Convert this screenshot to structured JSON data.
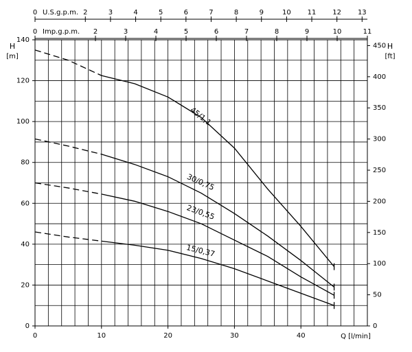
{
  "chart_data": {
    "type": "line",
    "ylabel": "H",
    "yunit": "[m]",
    "y2label": "H",
    "y2unit": "[ft]",
    "xlabel": "Q [l/min]",
    "xlim": [
      0,
      50
    ],
    "xticks": [
      0,
      10,
      20,
      30,
      40
    ],
    "ylim": [
      0,
      140
    ],
    "yticks": [
      0,
      20,
      40,
      60,
      80,
      100,
      120,
      140
    ],
    "y2lim": [
      0,
      459.3
    ],
    "y2ticks": [
      0,
      50,
      100,
      150,
      200,
      250,
      300,
      350,
      400,
      450
    ],
    "x2label": "U.S.g.p.m.",
    "x2lim": [
      0,
      13.21
    ],
    "x2ticks": [
      0,
      2,
      3,
      4,
      5,
      6,
      7,
      8,
      9,
      10,
      11,
      12,
      13
    ],
    "x3label": "Imp.g.p.m.",
    "x3lim": [
      0,
      11
    ],
    "x3ticks": [
      0,
      2,
      3,
      4,
      5,
      6,
      7,
      8,
      9,
      10,
      11
    ],
    "xgrid": [
      0,
      2,
      4,
      6,
      8,
      10,
      12,
      14,
      16,
      18,
      20,
      22,
      24,
      26,
      28,
      30,
      32,
      34,
      36,
      38,
      40,
      42,
      44,
      46,
      48,
      50
    ],
    "ygrid": [
      0,
      10,
      20,
      30,
      40,
      50,
      60,
      70,
      80,
      90,
      100,
      110,
      120,
      130,
      140
    ],
    "dashed_below_x": 10,
    "x": [
      0,
      5,
      10,
      15,
      20,
      25,
      30,
      35,
      40,
      45
    ],
    "series": [
      {
        "name": "45/1,1",
        "color": "#000000",
        "values": [
          135,
          130,
          122.5,
          118.5,
          112,
          102,
          87,
          67,
          48.7,
          29
        ]
      },
      {
        "name": "30/0,75",
        "color": "#000000",
        "values": [
          91.5,
          88,
          84,
          79,
          73,
          65,
          55,
          44,
          32,
          19
        ]
      },
      {
        "name": "23/0,55",
        "color": "#000000",
        "values": [
          70,
          67.5,
          64.5,
          61,
          56,
          50,
          42,
          34,
          24,
          15
        ]
      },
      {
        "name": "15/0,37",
        "color": "#000000",
        "values": [
          46,
          43.5,
          41.5,
          39.5,
          37,
          33,
          28,
          22,
          16,
          10
        ]
      }
    ]
  }
}
